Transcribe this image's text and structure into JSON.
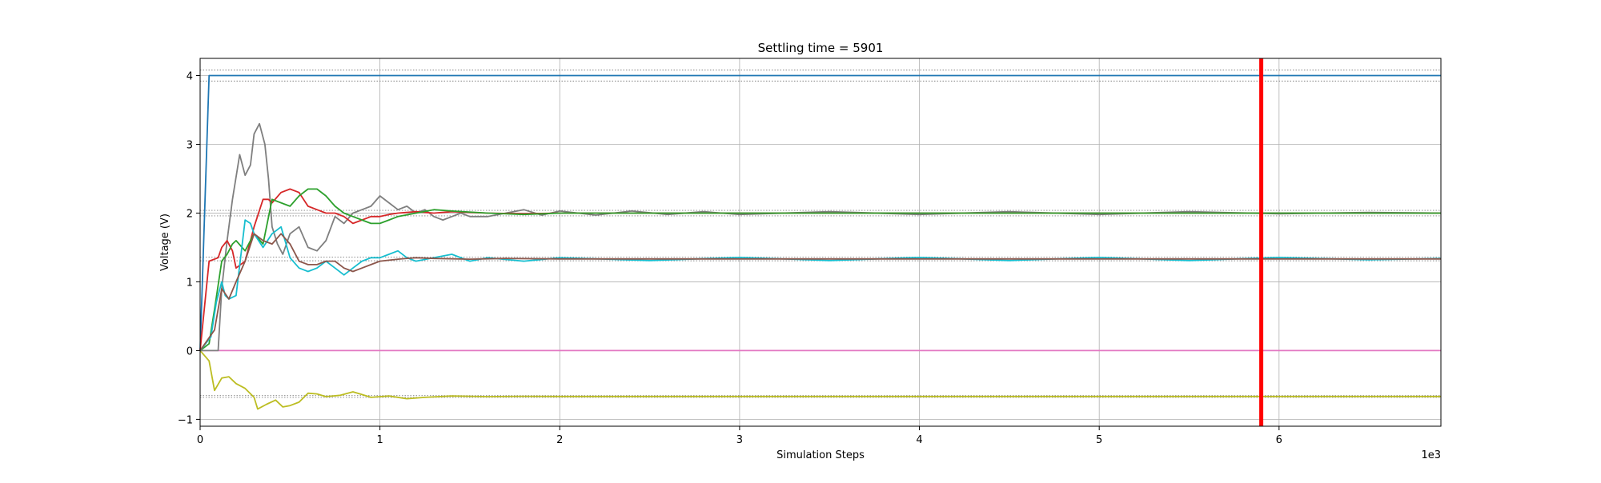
{
  "chart_data": {
    "type": "line",
    "title": "Settling time = 5901",
    "xlabel": "Simulation Steps",
    "ylabel": "Voltage (V)",
    "x_multiplier_label": "1e3",
    "xlim": [
      0,
      6.9
    ],
    "ylim": [
      -1.1,
      4.25
    ],
    "xticks": [
      0,
      1,
      2,
      3,
      4,
      5,
      6
    ],
    "yticks": [
      -1,
      0,
      1,
      2,
      3,
      4
    ],
    "grid": true,
    "legend": "none",
    "settling_time": 5901,
    "settling_marker": {
      "x": 5.901,
      "color": "#ff0000"
    },
    "reference_bands": [
      {
        "value": 4.0,
        "tolerance": 0.08,
        "color": "#808080"
      },
      {
        "value": 2.0,
        "tolerance": 0.04,
        "color": "#808080"
      },
      {
        "value": 1.333,
        "tolerance": 0.027,
        "color": "#808080"
      },
      {
        "value": -0.667,
        "tolerance": 0.013,
        "color": "#808080"
      }
    ],
    "series": [
      {
        "color": "#1f77b4",
        "x": [
          0,
          0.05,
          0.3,
          1,
          2,
          3,
          4,
          5,
          6,
          6.9
        ],
        "y": [
          0,
          4.0,
          4.0,
          4.0,
          4.0,
          4.0,
          4.0,
          4.0,
          4.0,
          4.0
        ]
      },
      {
        "color": "#e377c2",
        "x": [
          0,
          1,
          2,
          3,
          4,
          5,
          6,
          6.9
        ],
        "y": [
          0,
          0,
          0,
          0,
          0,
          0,
          0,
          0
        ]
      },
      {
        "color": "#bcbd22",
        "x": [
          0,
          0.05,
          0.08,
          0.12,
          0.16,
          0.2,
          0.25,
          0.3,
          0.32,
          0.37,
          0.42,
          0.46,
          0.5,
          0.55,
          0.6,
          0.65,
          0.7,
          0.78,
          0.85,
          0.9,
          0.95,
          1.05,
          1.15,
          1.25,
          1.4,
          1.6,
          1.8,
          2.0,
          2.5,
          3.0,
          4.0,
          5.0,
          6.0,
          6.9
        ],
        "y": [
          0,
          -0.15,
          -0.58,
          -0.4,
          -0.38,
          -0.48,
          -0.55,
          -0.68,
          -0.85,
          -0.78,
          -0.72,
          -0.82,
          -0.8,
          -0.75,
          -0.62,
          -0.63,
          -0.67,
          -0.65,
          -0.6,
          -0.64,
          -0.68,
          -0.66,
          -0.7,
          -0.68,
          -0.66,
          -0.67,
          -0.665,
          -0.667,
          -0.667,
          -0.667,
          -0.667,
          -0.667,
          -0.667,
          -0.667
        ]
      },
      {
        "color": "#7f7f7f",
        "x": [
          0,
          0.1,
          0.12,
          0.15,
          0.18,
          0.22,
          0.25,
          0.28,
          0.3,
          0.33,
          0.36,
          0.38,
          0.4,
          0.43,
          0.46,
          0.5,
          0.55,
          0.6,
          0.65,
          0.7,
          0.75,
          0.8,
          0.85,
          0.9,
          0.95,
          1.0,
          1.05,
          1.1,
          1.15,
          1.2,
          1.25,
          1.3,
          1.35,
          1.4,
          1.45,
          1.5,
          1.6,
          1.7,
          1.8,
          1.9,
          2.0,
          2.2,
          2.4,
          2.6,
          2.8,
          3.0,
          3.5,
          4.0,
          4.5,
          5.0,
          5.5,
          6.0,
          6.5,
          6.9
        ],
        "y": [
          0,
          0,
          0.9,
          1.6,
          2.2,
          2.85,
          2.55,
          2.7,
          3.15,
          3.3,
          3.0,
          2.5,
          1.8,
          1.55,
          1.4,
          1.7,
          1.8,
          1.5,
          1.45,
          1.6,
          1.95,
          1.85,
          2.0,
          2.05,
          2.1,
          2.25,
          2.15,
          2.05,
          2.1,
          2.0,
          2.05,
          1.95,
          1.9,
          1.95,
          2.0,
          1.95,
          1.95,
          2.0,
          2.05,
          1.97,
          2.03,
          1.97,
          2.03,
          1.98,
          2.02,
          1.98,
          2.02,
          1.98,
          2.02,
          1.98,
          2.02,
          1.99,
          2.01,
          2.0
        ]
      },
      {
        "color": "#d62728",
        "x": [
          0,
          0.05,
          0.1,
          0.12,
          0.15,
          0.18,
          0.2,
          0.25,
          0.3,
          0.35,
          0.38,
          0.4,
          0.45,
          0.5,
          0.55,
          0.6,
          0.65,
          0.7,
          0.75,
          0.8,
          0.85,
          0.9,
          0.95,
          1.0,
          1.05,
          1.1,
          1.2,
          1.3,
          1.4,
          1.6,
          1.8,
          2.0,
          3.0,
          4.0,
          5.0,
          6.0,
          6.9
        ],
        "y": [
          0,
          1.3,
          1.35,
          1.5,
          1.6,
          1.45,
          1.2,
          1.3,
          1.8,
          2.2,
          2.2,
          2.15,
          2.3,
          2.35,
          2.3,
          2.1,
          2.05,
          2.0,
          2.0,
          1.95,
          1.85,
          1.9,
          1.95,
          1.95,
          1.98,
          2.0,
          2.02,
          2.0,
          2.02,
          2.0,
          1.99,
          2.0,
          2.0,
          2.0,
          2.0,
          2.0,
          2.0
        ]
      },
      {
        "color": "#2ca02c",
        "x": [
          0,
          0.05,
          0.08,
          0.12,
          0.15,
          0.18,
          0.2,
          0.25,
          0.3,
          0.35,
          0.4,
          0.45,
          0.5,
          0.55,
          0.6,
          0.65,
          0.7,
          0.75,
          0.8,
          0.85,
          0.9,
          0.95,
          1.0,
          1.05,
          1.1,
          1.2,
          1.3,
          1.4,
          1.6,
          1.8,
          2.0,
          3.0,
          4.0,
          5.0,
          6.0,
          6.9
        ],
        "y": [
          0,
          0.1,
          0.6,
          1.3,
          1.4,
          1.55,
          1.6,
          1.45,
          1.7,
          1.55,
          2.2,
          2.15,
          2.1,
          2.25,
          2.35,
          2.35,
          2.25,
          2.1,
          2.0,
          1.95,
          1.9,
          1.85,
          1.85,
          1.9,
          1.95,
          2.0,
          2.05,
          2.03,
          2.0,
          1.98,
          2.0,
          2.0,
          2.0,
          2.0,
          2.0,
          2.0
        ]
      },
      {
        "color": "#17becf",
        "x": [
          0,
          0.06,
          0.09,
          0.12,
          0.14,
          0.16,
          0.2,
          0.25,
          0.28,
          0.3,
          0.35,
          0.4,
          0.45,
          0.5,
          0.55,
          0.6,
          0.65,
          0.7,
          0.75,
          0.8,
          0.85,
          0.9,
          0.95,
          1.0,
          1.05,
          1.1,
          1.15,
          1.2,
          1.3,
          1.4,
          1.5,
          1.6,
          1.8,
          2.0,
          2.5,
          3.0,
          3.5,
          4.0,
          4.5,
          5.0,
          5.5,
          6.0,
          6.5,
          6.9
        ],
        "y": [
          0,
          0.2,
          0.7,
          1.0,
          0.8,
          0.75,
          0.8,
          1.9,
          1.85,
          1.7,
          1.5,
          1.7,
          1.8,
          1.35,
          1.2,
          1.15,
          1.2,
          1.3,
          1.2,
          1.1,
          1.2,
          1.3,
          1.35,
          1.35,
          1.4,
          1.45,
          1.35,
          1.3,
          1.35,
          1.4,
          1.3,
          1.35,
          1.3,
          1.35,
          1.31,
          1.355,
          1.31,
          1.355,
          1.31,
          1.355,
          1.31,
          1.355,
          1.32,
          1.34
        ]
      },
      {
        "color": "#8c564b",
        "x": [
          0,
          0.08,
          0.12,
          0.16,
          0.2,
          0.25,
          0.3,
          0.35,
          0.4,
          0.45,
          0.5,
          0.55,
          0.6,
          0.65,
          0.7,
          0.75,
          0.8,
          0.85,
          0.9,
          0.95,
          1.0,
          1.1,
          1.2,
          1.3,
          1.5,
          1.7,
          2.0,
          3.0,
          4.0,
          5.0,
          6.0,
          6.9
        ],
        "y": [
          0,
          0.3,
          0.9,
          0.75,
          1.0,
          1.3,
          1.7,
          1.6,
          1.55,
          1.7,
          1.55,
          1.3,
          1.25,
          1.25,
          1.3,
          1.3,
          1.2,
          1.15,
          1.2,
          1.25,
          1.3,
          1.33,
          1.35,
          1.34,
          1.33,
          1.34,
          1.333,
          1.333,
          1.333,
          1.333,
          1.333,
          1.333
        ]
      }
    ]
  }
}
